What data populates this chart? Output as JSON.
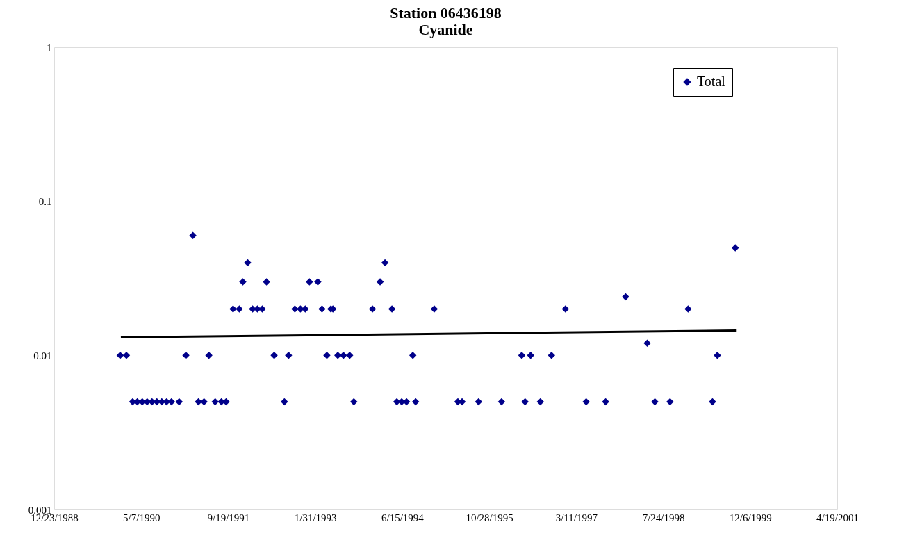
{
  "chart_data": {
    "type": "scatter",
    "title": [
      "Station 06436198",
      "Cyanide"
    ],
    "log": "y",
    "grid": false,
    "legend": "top right",
    "xlim": [
      "1988-12-23",
      "2001-04-19"
    ],
    "xticks": [
      {
        "value": "1988-12-23",
        "label": "12/23/1988"
      },
      {
        "value": "1990-05-07",
        "label": "5/7/1990"
      },
      {
        "value": "1991-09-19",
        "label": "9/19/1991"
      },
      {
        "value": "1993-01-31",
        "label": "1/31/1993"
      },
      {
        "value": "1994-06-15",
        "label": "6/15/1994"
      },
      {
        "value": "1995-10-28",
        "label": "10/28/1995"
      },
      {
        "value": "1997-03-11",
        "label": "3/11/1997"
      },
      {
        "value": "1998-07-24",
        "label": "7/24/1998"
      },
      {
        "value": "1999-12-06",
        "label": "12/6/1999"
      },
      {
        "value": "2001-04-19",
        "label": "4/19/2001"
      }
    ],
    "ylim": [
      0.001,
      1
    ],
    "yticks": [
      0.001,
      0.01,
      0.1,
      1
    ],
    "series": [
      {
        "name": "Total",
        "marker": "diamond",
        "color": "#00008b",
        "x": [
          "1990-01-06",
          "1990-02-11",
          "1990-03-19",
          "1990-04-15",
          "1990-05-13",
          "1990-06-10",
          "1990-07-08",
          "1990-08-05",
          "1990-09-02",
          "1990-09-30",
          "1990-10-28",
          "1990-12-11",
          "1991-01-19",
          "1991-02-28",
          "1991-04-01",
          "1991-05-03",
          "1991-05-31",
          "1991-07-06",
          "1991-08-11",
          "1991-09-07",
          "1991-10-17",
          "1991-11-22",
          "1991-12-12",
          "1992-01-09",
          "1992-02-06",
          "1992-03-05",
          "1992-04-02",
          "1992-04-26",
          "1992-06-09",
          "1992-08-07",
          "1992-08-31",
          "1992-10-06",
          "1992-11-07",
          "1992-12-05",
          "1992-12-29",
          "1993-02-15",
          "1993-03-11",
          "1993-04-08",
          "1993-05-01",
          "1993-05-13",
          "1993-06-10",
          "1993-07-12",
          "1993-08-17",
          "1993-09-10",
          "1993-12-26",
          "1994-02-08",
          "1994-03-08",
          "1994-04-17",
          "1994-05-15",
          "1994-06-12",
          "1994-07-10",
          "1994-08-15",
          "1994-08-31",
          "1994-12-16",
          "1995-05-01",
          "1995-05-25",
          "1995-08-28",
          "1996-01-07",
          "1996-05-02",
          "1996-05-21",
          "1996-06-22",
          "1996-08-17",
          "1996-10-20",
          "1997-01-08",
          "1997-05-07",
          "1997-08-27",
          "1997-12-20",
          "1998-04-23",
          "1998-06-06",
          "1998-09-01",
          "1998-12-14",
          "1999-05-03",
          "1999-05-31",
          "1999-09-11"
        ],
        "values": [
          0.01,
          0.01,
          0.005,
          0.005,
          0.005,
          0.005,
          0.005,
          0.005,
          0.005,
          0.005,
          0.005,
          0.005,
          0.01,
          0.06,
          0.005,
          0.005,
          0.01,
          0.005,
          0.005,
          0.005,
          0.02,
          0.02,
          0.03,
          0.04,
          0.02,
          0.02,
          0.02,
          0.03,
          0.01,
          0.005,
          0.01,
          0.02,
          0.02,
          0.02,
          0.03,
          0.03,
          0.02,
          0.01,
          0.02,
          0.02,
          0.01,
          0.01,
          0.01,
          0.005,
          0.02,
          0.03,
          0.04,
          0.02,
          0.005,
          0.005,
          0.005,
          0.01,
          0.005,
          0.02,
          0.005,
          0.005,
          0.005,
          0.005,
          0.01,
          0.005,
          0.01,
          0.005,
          0.01,
          0.02,
          0.005,
          0.005,
          0.024,
          0.012,
          0.005,
          0.005,
          0.02,
          0.005,
          0.01,
          0.05
        ]
      },
      {
        "type": "line",
        "color": "#000000",
        "x": [
          "1990-01-10",
          "1999-09-19"
        ],
        "values": [
          0.0131,
          0.0145
        ]
      }
    ]
  }
}
